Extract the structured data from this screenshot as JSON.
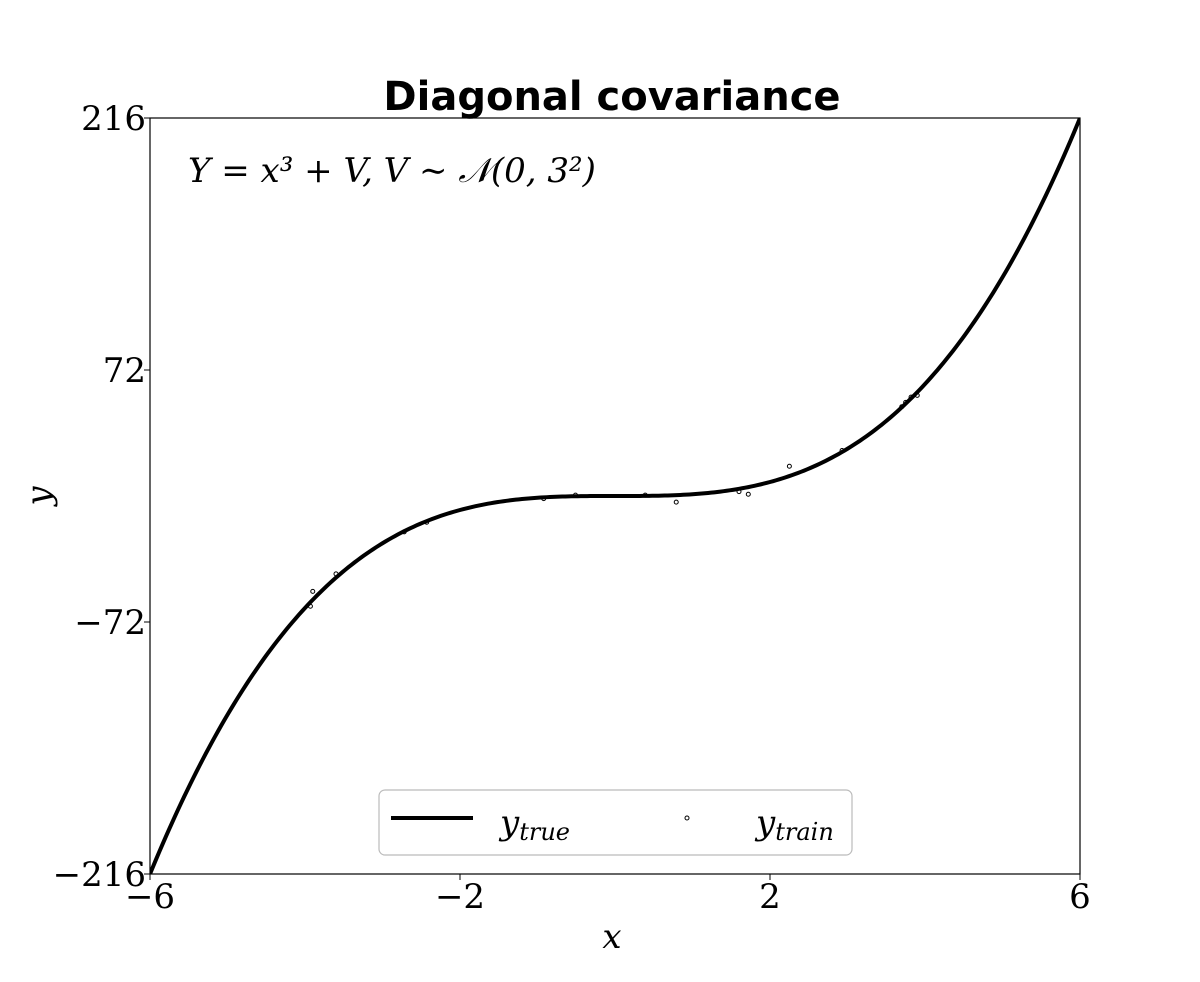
{
  "chart_data": {
    "type": "line",
    "title": "Diagonal covariance",
    "xlabel": "x",
    "ylabel": "y",
    "xlim": [
      -6,
      6
    ],
    "ylim": [
      -216,
      216
    ],
    "xticks": [
      -6,
      -2,
      2,
      6
    ],
    "xtick_labels": [
      "−6",
      "−2",
      "2",
      "6"
    ],
    "yticks": [
      -216,
      -72,
      72,
      216
    ],
    "ytick_labels": [
      "−216",
      "−72",
      "72",
      "216"
    ],
    "grid": false,
    "legend_position": "lower-center",
    "annotation": "Y = x³ + V,  V ∼ 𝒩(0, 3²)",
    "series": [
      {
        "name": "y_true",
        "legend_label": "ytrue",
        "kind": "line",
        "function": "x^3",
        "color": "#000000"
      },
      {
        "name": "y_train",
        "legend_label": "ytrain",
        "kind": "scatter",
        "color": "#000000",
        "points": [
          [
            -3.93,
            -63.0
          ],
          [
            -3.9,
            -54.5
          ],
          [
            -3.6,
            -44.5
          ],
          [
            -2.72,
            -20.5
          ],
          [
            -2.43,
            -15.0
          ],
          [
            -0.92,
            -1.5
          ],
          [
            -0.51,
            0.5
          ],
          [
            0.39,
            0.5
          ],
          [
            0.79,
            -3.5
          ],
          [
            1.6,
            2.5
          ],
          [
            1.72,
            1.0
          ],
          [
            2.25,
            17.0
          ],
          [
            2.93,
            26.0
          ],
          [
            3.7,
            51.0
          ],
          [
            3.75,
            53.5
          ],
          [
            3.82,
            56.5
          ],
          [
            3.9,
            57.5
          ]
        ]
      }
    ]
  }
}
